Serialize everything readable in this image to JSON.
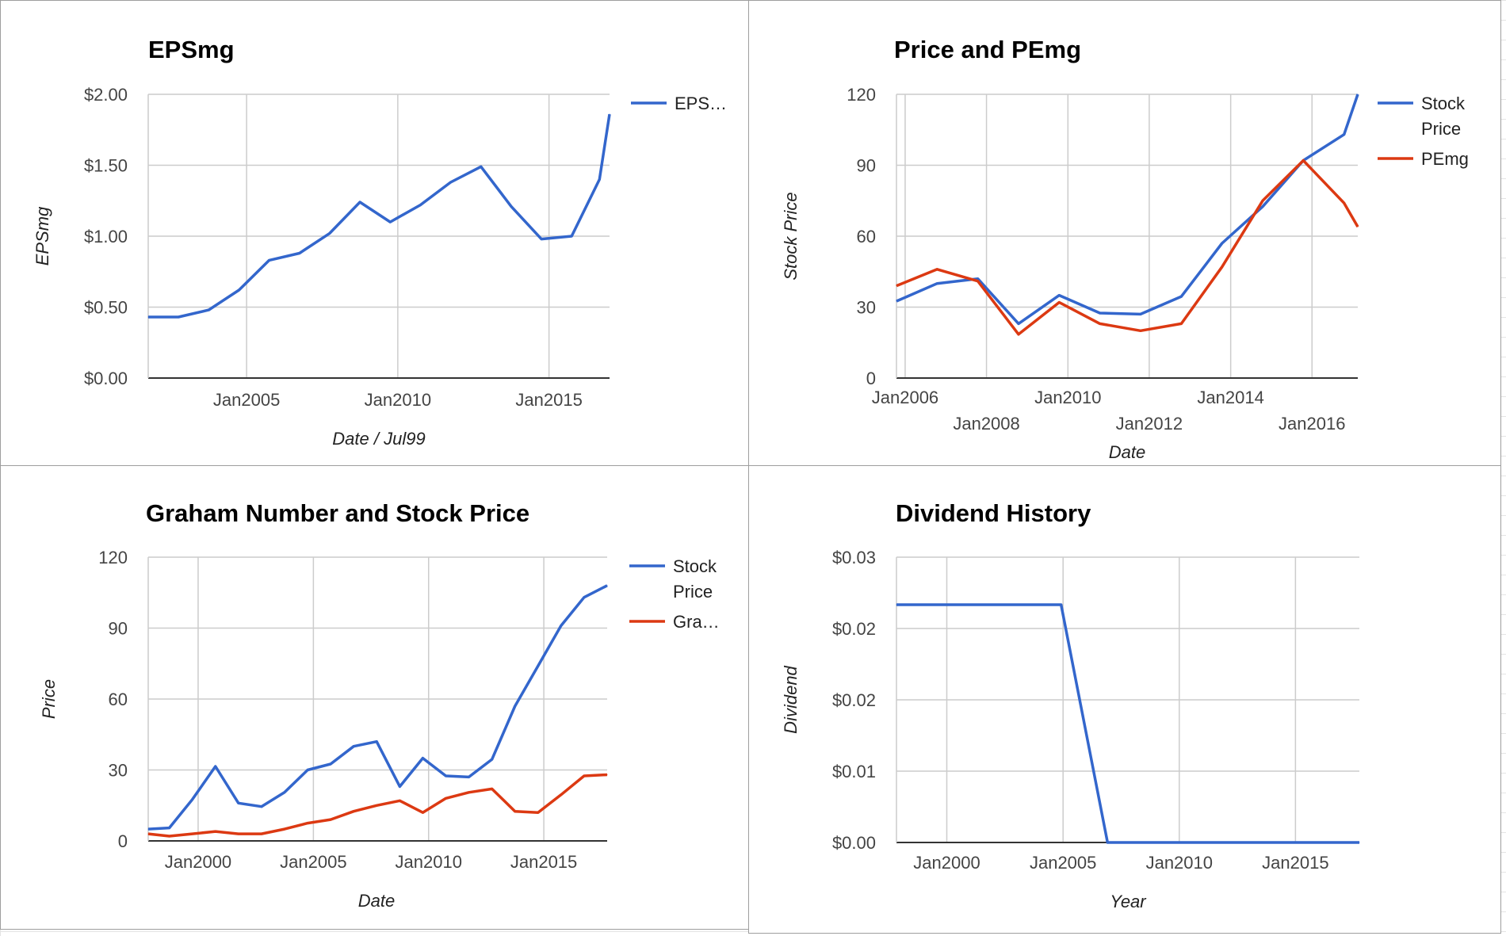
{
  "chart_data": [
    {
      "id": "eps",
      "type": "line",
      "title": "EPSmg",
      "xlabel": "Date / Jul99",
      "ylabel": "EPSmg",
      "grid": true,
      "legend_position": "right",
      "xlim": [
        "2001-10-01",
        "2017-01-01"
      ],
      "ylim": [
        0,
        2
      ],
      "xticks": [
        {
          "date": "2005-01-01",
          "label": "Jan2005"
        },
        {
          "date": "2010-01-01",
          "label": "Jan2010"
        },
        {
          "date": "2015-01-01",
          "label": "Jan2015"
        }
      ],
      "yticks": [
        {
          "value": 0,
          "label": "$0.00"
        },
        {
          "value": 0.5,
          "label": "$0.50"
        },
        {
          "value": 1,
          "label": "$1.00"
        },
        {
          "value": 1.5,
          "label": "$1.50"
        },
        {
          "value": 2,
          "label": "$2.00"
        }
      ],
      "series": [
        {
          "name": "EPS…",
          "color": "#3366cc",
          "x": [
            "2001-10-01",
            "2002-10-01",
            "2003-10-01",
            "2004-10-01",
            "2005-10-01",
            "2006-10-01",
            "2007-10-01",
            "2008-10-01",
            "2009-10-01",
            "2010-10-01",
            "2011-10-01",
            "2012-10-01",
            "2013-10-01",
            "2014-10-01",
            "2015-10-01",
            "2016-09-01",
            "2017-01-01"
          ],
          "y": [
            0.43,
            0.43,
            0.48,
            0.62,
            0.83,
            0.88,
            1.02,
            1.24,
            1.1,
            1.22,
            1.38,
            1.49,
            1.21,
            0.98,
            1.0,
            1.4,
            1.86
          ]
        }
      ]
    },
    {
      "id": "pe",
      "type": "line",
      "title": "Price and PEmg",
      "xlabel": "Date",
      "ylabel": "Stock Price",
      "grid": true,
      "legend_position": "right",
      "xlim": [
        "2005-10-15",
        "2017-02-15"
      ],
      "ylim": [
        0,
        120
      ],
      "xticks": [
        {
          "date": "2006-01-01",
          "label": "Jan2006",
          "row": 0
        },
        {
          "date": "2008-01-01",
          "label": "Jan2008",
          "row": 1
        },
        {
          "date": "2010-01-01",
          "label": "Jan2010",
          "row": 0
        },
        {
          "date": "2012-01-01",
          "label": "Jan2012",
          "row": 1
        },
        {
          "date": "2014-01-01",
          "label": "Jan2014",
          "row": 0
        },
        {
          "date": "2016-01-01",
          "label": "Jan2016",
          "row": 1
        }
      ],
      "yticks": [
        {
          "value": 0,
          "label": "0"
        },
        {
          "value": 30,
          "label": "30"
        },
        {
          "value": 60,
          "label": "60"
        },
        {
          "value": 90,
          "label": "90"
        },
        {
          "value": 120,
          "label": "120"
        }
      ],
      "series": [
        {
          "name": "Stock Price",
          "name_lines": [
            "Stock",
            "Price"
          ],
          "color": "#3366cc",
          "x": [
            "2005-10-15",
            "2006-10-15",
            "2007-10-15",
            "2008-10-15",
            "2009-10-15",
            "2010-10-15",
            "2011-10-15",
            "2012-10-15",
            "2013-10-15",
            "2014-10-15",
            "2015-10-15",
            "2016-10-15",
            "2017-02-15"
          ],
          "y": [
            32.5,
            40,
            42,
            23,
            35,
            27.5,
            27,
            34.5,
            57,
            72.5,
            92,
            103,
            120
          ]
        },
        {
          "name": "PEmg",
          "name_lines": [
            "PEmg"
          ],
          "color": "#dc3912",
          "x": [
            "2005-10-15",
            "2006-10-15",
            "2007-10-15",
            "2008-10-15",
            "2009-10-15",
            "2010-10-15",
            "2011-10-15",
            "2012-10-15",
            "2013-10-15",
            "2014-10-15",
            "2015-10-15",
            "2016-10-15",
            "2017-02-15"
          ],
          "y": [
            39,
            46,
            41,
            18.5,
            32,
            23,
            20,
            23,
            47,
            75,
            92,
            74,
            64
          ]
        }
      ]
    },
    {
      "id": "graham",
      "type": "line",
      "title": "Graham Number and Stock Price",
      "xlabel": "Date",
      "ylabel": "Price",
      "grid": true,
      "legend_position": "right",
      "xlim": [
        "1997-11-01",
        "2017-10-01"
      ],
      "ylim": [
        0,
        120
      ],
      "xticks": [
        {
          "date": "2000-01-01",
          "label": "Jan2000"
        },
        {
          "date": "2005-01-01",
          "label": "Jan2005"
        },
        {
          "date": "2010-01-01",
          "label": "Jan2010"
        },
        {
          "date": "2015-01-01",
          "label": "Jan2015"
        }
      ],
      "yticks": [
        {
          "value": 0,
          "label": "0"
        },
        {
          "value": 30,
          "label": "30"
        },
        {
          "value": 60,
          "label": "60"
        },
        {
          "value": 90,
          "label": "90"
        },
        {
          "value": 120,
          "label": "120"
        }
      ],
      "series": [
        {
          "name": "Stock Price",
          "name_lines": [
            "Stock",
            "Price"
          ],
          "color": "#3366cc",
          "x": [
            "1997-11-01",
            "1998-10-01",
            "1999-10-01",
            "2000-10-01",
            "2001-10-01",
            "2002-10-01",
            "2003-10-01",
            "2004-10-01",
            "2005-10-01",
            "2006-10-01",
            "2007-10-01",
            "2008-10-01",
            "2009-10-01",
            "2010-10-01",
            "2011-10-01",
            "2012-10-01",
            "2013-10-01",
            "2014-10-01",
            "2015-10-01",
            "2016-10-01",
            "2017-10-01"
          ],
          "y": [
            5,
            5.5,
            17.5,
            31.5,
            16,
            14.5,
            20.5,
            30,
            32.5,
            40,
            42,
            23,
            35,
            27.5,
            27,
            34.5,
            57,
            74,
            91,
            103,
            108
          ]
        },
        {
          "name": "Gra…",
          "name_lines": [
            "Gra…"
          ],
          "color": "#dc3912",
          "x": [
            "1997-11-01",
            "1998-10-01",
            "1999-10-01",
            "2000-10-01",
            "2001-10-01",
            "2002-10-01",
            "2003-10-01",
            "2004-10-01",
            "2005-10-01",
            "2006-10-01",
            "2007-10-01",
            "2008-10-01",
            "2009-10-01",
            "2010-10-01",
            "2011-10-01",
            "2012-10-01",
            "2013-10-01",
            "2014-10-01",
            "2015-10-01",
            "2016-10-01",
            "2017-10-01"
          ],
          "y": [
            3,
            2,
            3,
            4,
            3,
            3,
            5,
            7.5,
            9,
            12.5,
            15,
            17,
            12,
            18,
            20.5,
            22,
            12.5,
            12,
            19.5,
            27.5,
            28
          ]
        }
      ]
    },
    {
      "id": "dividend",
      "type": "line",
      "title": "Dividend History",
      "xlabel": "Year",
      "ylabel": "Dividend",
      "grid": true,
      "legend_position": "none",
      "xlim": [
        "1997-11-01",
        "2017-10-01"
      ],
      "ylim": [
        0,
        0.03
      ],
      "xticks": [
        {
          "date": "2000-01-01",
          "label": "Jan2000"
        },
        {
          "date": "2005-01-01",
          "label": "Jan2005"
        },
        {
          "date": "2010-01-01",
          "label": "Jan2010"
        },
        {
          "date": "2015-01-01",
          "label": "Jan2015"
        }
      ],
      "yticks": [
        {
          "value": 0,
          "label": "$0.00"
        },
        {
          "value": 0.0075,
          "label": "$0.01"
        },
        {
          "value": 0.015,
          "label": "$0.02"
        },
        {
          "value": 0.0225,
          "label": "$0.02"
        },
        {
          "value": 0.03,
          "label": "$0.03"
        }
      ],
      "series": [
        {
          "name": "Dividend",
          "show_in_legend": false,
          "color": "#3366cc",
          "x": [
            "1997-11-01",
            "2004-12-01",
            "2006-12-01",
            "2017-10-01"
          ],
          "y": [
            0.025,
            0.025,
            0,
            0
          ]
        }
      ]
    }
  ]
}
